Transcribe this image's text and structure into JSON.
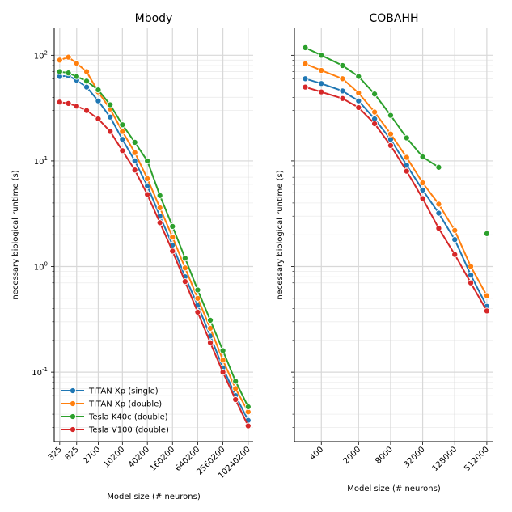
{
  "chart_data": [
    {
      "type": "line",
      "title": "Mbody",
      "xlabel": "Model size (# neurons)",
      "ylabel": "necessary biological runtime (s)",
      "x": [
        325,
        525,
        825,
        1425,
        2700,
        5200,
        10200,
        20200,
        40200,
        80200,
        160200,
        320200,
        640200,
        1280200,
        2560200,
        5120200,
        10240200
      ],
      "xscale": "log",
      "yscale": "log",
      "ylim": [
        0.022,
        180
      ],
      "xticks": [
        "325",
        "825",
        "2700",
        "10200",
        "40200",
        "160200",
        "640200",
        "2560200",
        "10240200"
      ],
      "xtick_values": [
        325,
        825,
        2700,
        10200,
        40200,
        160200,
        640200,
        2560200,
        10240200
      ],
      "yticks": [
        "10^-1",
        "10^0",
        "10^1",
        "10^2"
      ],
      "ytick_values": [
        0.1,
        1,
        10,
        100
      ],
      "grid": true,
      "legend": "lower-left",
      "series": [
        {
          "name": "TITAN Xp (single)",
          "color": "#1f77b4",
          "values": [
            63,
            64,
            58,
            50,
            37,
            26,
            16,
            10,
            5.8,
            3,
            1.6,
            0.8,
            0.43,
            0.22,
            0.11,
            0.06,
            0.035
          ]
        },
        {
          "name": "TITAN Xp (double)",
          "color": "#ff7f0e",
          "values": [
            90,
            96,
            84,
            70,
            45,
            31,
            19,
            12,
            6.8,
            3.6,
            1.9,
            0.97,
            0.5,
            0.26,
            0.13,
            0.07,
            0.042
          ]
        },
        {
          "name": "Tesla K40c (double)",
          "color": "#2ca02c",
          "values": [
            70,
            68,
            63,
            57,
            47,
            34,
            22,
            15,
            10,
            4.7,
            2.4,
            1.2,
            0.6,
            0.31,
            0.16,
            0.082,
            0.047
          ]
        },
        {
          "name": "Tesla V100 (double)",
          "color": "#d62728",
          "values": [
            36,
            35,
            33,
            30,
            25,
            19,
            12.5,
            8.2,
            4.8,
            2.6,
            1.4,
            0.72,
            0.37,
            0.19,
            0.1,
            0.055,
            0.031
          ]
        }
      ]
    },
    {
      "type": "line",
      "title": "COBAHH",
      "xlabel": "Model size (# neurons)",
      "ylabel": "necessary biological runtime (s)",
      "x": [
        200,
        400,
        1000,
        2000,
        4000,
        8000,
        16000,
        32000,
        64000,
        128000,
        256000,
        512000
      ],
      "xscale": "log",
      "yscale": "log",
      "ylim": [
        0.022,
        180
      ],
      "xticks": [
        "400",
        "2000",
        "8000",
        "32000",
        "128000",
        "512000"
      ],
      "xtick_values": [
        400,
        2000,
        8000,
        32000,
        128000,
        512000
      ],
      "yticks": [
        "10^-1",
        "10^0",
        "10^1",
        "10^2"
      ],
      "ytick_values": [
        0.1,
        1,
        10,
        100
      ],
      "grid": true,
      "series": [
        {
          "name": "TITAN Xp (single)",
          "color": "#1f77b4",
          "values": [
            60,
            54,
            46,
            37,
            25,
            16,
            9.1,
            5.3,
            3.2,
            1.8,
            0.83,
            0.42
          ]
        },
        {
          "name": "TITAN Xp (double)",
          "color": "#ff7f0e",
          "values": [
            83,
            72,
            60,
            44,
            29,
            18,
            10.8,
            6.2,
            3.9,
            2.2,
            1.0,
            0.53
          ]
        },
        {
          "name": "Tesla K40c (double)",
          "color": "#2ca02c",
          "values": [
            118,
            100,
            80,
            63,
            43,
            27,
            16.5,
            10.9,
            8.7,
            null,
            null,
            2.05
          ]
        },
        {
          "name": "Tesla V100 (double)",
          "color": "#d62728",
          "values": [
            50,
            45,
            39,
            32,
            22.5,
            14,
            8,
            4.4,
            2.3,
            1.3,
            0.7,
            0.38
          ]
        }
      ]
    }
  ]
}
